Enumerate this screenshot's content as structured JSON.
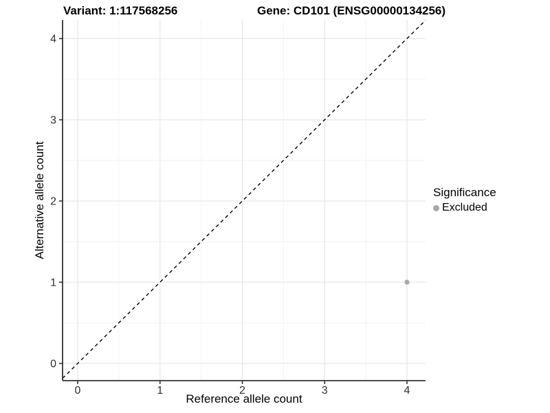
{
  "chart_data": {
    "type": "scatter",
    "title_left": "Variant: 1:117568256",
    "title_right": "Gene: CD101 (ENSG00000134256)",
    "xlabel": "Reference allele count",
    "ylabel": "Alternative allele count",
    "xlim": [
      -0.2,
      4.23
    ],
    "ylim": [
      -0.21,
      4.23
    ],
    "x_ticks": [
      0,
      1,
      2,
      3,
      4
    ],
    "y_ticks": [
      0,
      1,
      2,
      3,
      4
    ],
    "grid": {
      "major": true,
      "minor": true
    },
    "points": [
      {
        "x": 4,
        "y": 1,
        "significance": "Excluded"
      }
    ],
    "identity_line": {
      "type": "y=x",
      "style": "dashed"
    },
    "legend": {
      "title": "Significance",
      "position": "right",
      "entries": [
        {
          "label": "Excluded",
          "color": "#a8a8a8"
        }
      ]
    }
  },
  "colors": {
    "background": "#ffffff",
    "grid_major": "#e6e6e6",
    "grid_minor": "#f2f2f2",
    "axis_line": "#333333",
    "tick_mark": "#333333",
    "tick_label": "#303030",
    "identity_line": "#000000",
    "point": "#a8a8a8"
  }
}
